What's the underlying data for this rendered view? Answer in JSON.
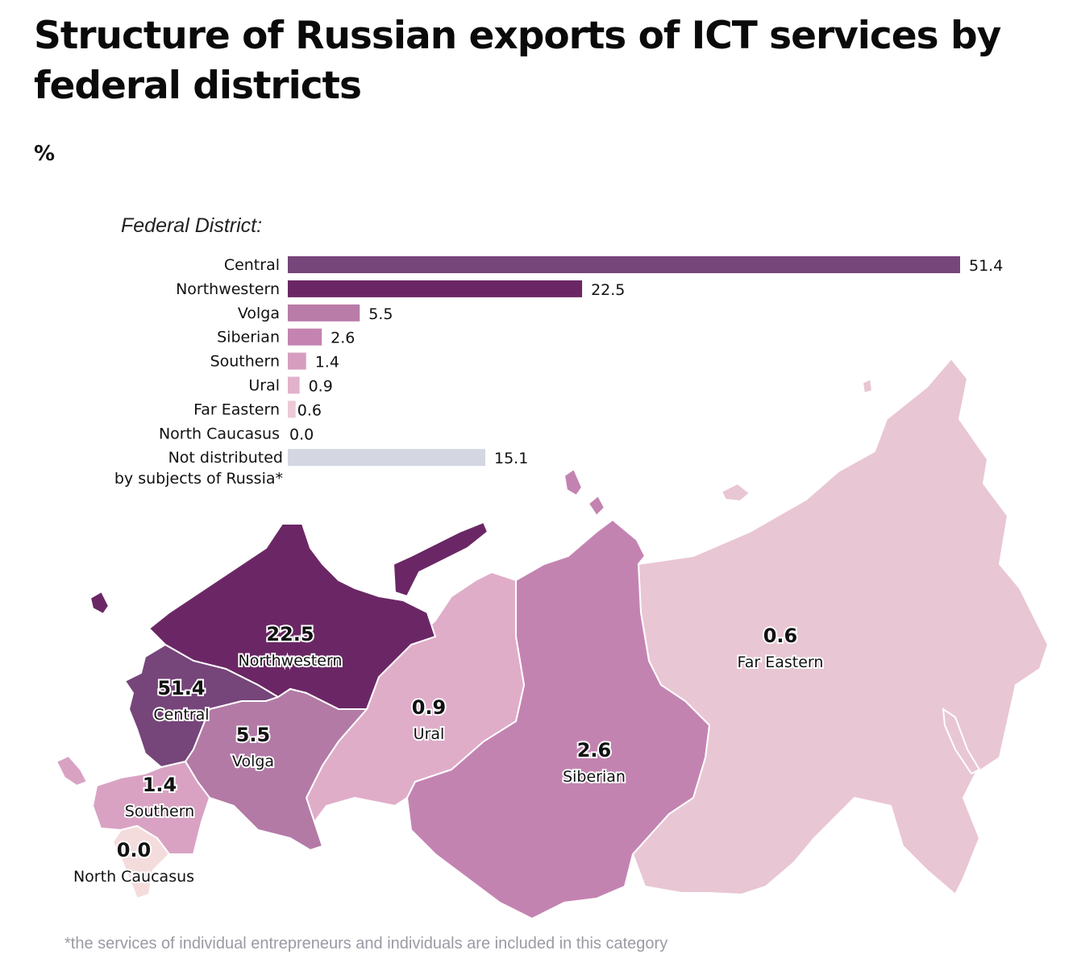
{
  "title": "Structure of Russian exports of ICT services by federal districts",
  "unit_label": "%",
  "footnote": "*the services of individual entrepreneurs and individuals are included in this category",
  "chart_data": {
    "type": "bar",
    "orientation": "horizontal",
    "axis_title": "Federal District:",
    "categories": [
      "Central",
      "Northwestern",
      "Volga",
      "Siberian",
      "Southern",
      "Ural",
      "Far Eastern",
      "North Caucasus",
      [
        "Not distributed",
        "by subjects of Russia*"
      ]
    ],
    "values": [
      51.4,
      22.5,
      5.5,
      2.6,
      1.4,
      0.9,
      0.6,
      0.0,
      15.1
    ],
    "value_labels": [
      "51.4",
      "22.5",
      "5.5",
      "2.6",
      "1.4",
      "0.9",
      "0.6",
      "0.0",
      "15.1"
    ],
    "colors": [
      "#76457a",
      "#6b2765",
      "#b97ba7",
      "#c483b1",
      "#d69dbf",
      "#e2b2cb",
      "#ecc9d6",
      "#f2dada",
      "#d4d7e2"
    ],
    "map_regions": [
      {
        "name": "Northwestern",
        "value": "22.5",
        "color": "#6b2765"
      },
      {
        "name": "Central",
        "value": "51.4",
        "color": "#76457a"
      },
      {
        "name": "Volga",
        "value": "5.5",
        "color": "#b37aa6"
      },
      {
        "name": "Southern",
        "value": "1.4",
        "color": "#d9a2c3"
      },
      {
        "name": "North Caucasus",
        "value": "0.0",
        "color": "#f5dcdc"
      },
      {
        "name": "Ural",
        "value": "0.9",
        "color": "#e0adc9"
      },
      {
        "name": "Siberian",
        "value": "2.6",
        "color": "#c383b1"
      },
      {
        "name": "Far Eastern",
        "value": "0.6",
        "color": "#e9c6d3"
      }
    ]
  }
}
